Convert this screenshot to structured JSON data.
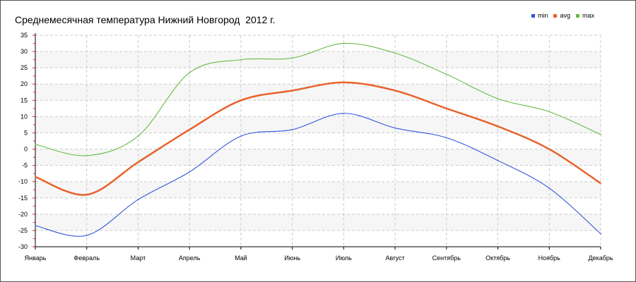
{
  "chart_data": {
    "type": "line",
    "title": "Среднемесячная температура Нижний Новгород  2012 г.",
    "categories": [
      "Январь",
      "Февраль",
      "Март",
      "Апрель",
      "Май",
      "Июнь",
      "Июль",
      "Август",
      "Сентябрь",
      "Октябрь",
      "Ноябрь",
      "Декабрь"
    ],
    "ylim": [
      -30,
      35
    ],
    "yticks": [
      35,
      30,
      25,
      20,
      15,
      10,
      5,
      0,
      -5,
      -10,
      -15,
      -20,
      -25,
      -30
    ],
    "grid": true,
    "legend_position": "top-right",
    "series": [
      {
        "name": "min",
        "color": "#3355dd",
        "values": [
          -23.5,
          -26.5,
          -15.5,
          -7,
          4,
          6,
          11,
          6.5,
          3.5,
          -3.5,
          -12,
          -26
        ]
      },
      {
        "name": "avg",
        "color": "#e8622a",
        "values": [
          -8.5,
          -14,
          -4,
          6,
          15,
          18,
          20.5,
          18,
          12.5,
          7,
          0,
          -10.5
        ]
      },
      {
        "name": "max",
        "color": "#66bb44",
        "values": [
          1.5,
          -2,
          4,
          23.5,
          27.5,
          28,
          32.5,
          29.5,
          23,
          15.5,
          11.5,
          4.5
        ]
      }
    ]
  }
}
